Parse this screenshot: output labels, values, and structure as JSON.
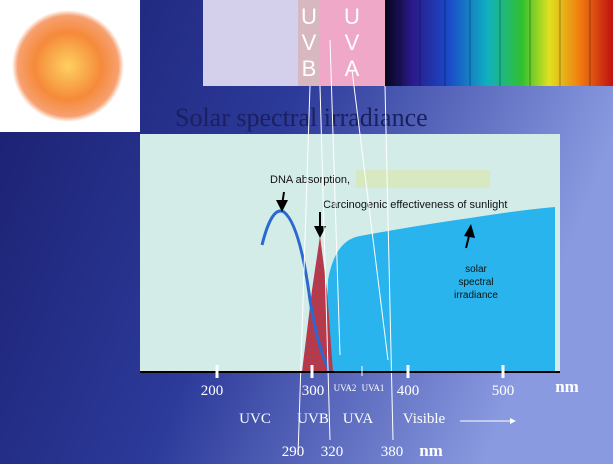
{
  "title": "Solar spectral irradiance",
  "spectrum_strip": {
    "uvb_letters": [
      "U",
      "V",
      "B"
    ],
    "uva_letters": [
      "U",
      "V",
      "A"
    ]
  },
  "annotations": {
    "dna": "DNA absorption,",
    "carcinogenic": "Carcinogenic effectiveness of sunlight",
    "irradiance": [
      "solar",
      "spectral",
      "irradiance"
    ]
  },
  "axis": {
    "ticks": [
      "200",
      "300",
      "400",
      "500"
    ],
    "unit": "nm",
    "sub_labels": [
      "UVA2",
      "UVA1"
    ]
  },
  "regions": [
    "UVC",
    "UVB",
    "UVA",
    "Visible"
  ],
  "boundaries": {
    "values": [
      "290",
      "320",
      "380"
    ],
    "unit": "nm"
  }
}
